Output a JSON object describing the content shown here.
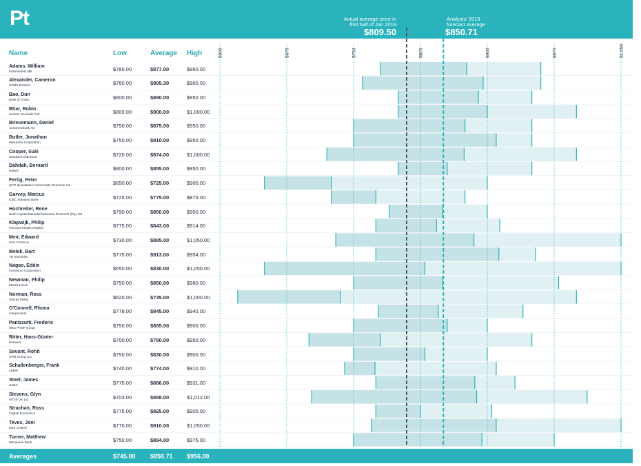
{
  "header": {
    "symbol": "Pt",
    "actual_note": {
      "line1": "Actual average price in",
      "line2": "first half of Jan 2019",
      "value_label": "$809.50"
    },
    "forecast_note": {
      "line1": "Analysts' 2019",
      "line2": "forecast average",
      "value_label": "$850.71"
    }
  },
  "columns": {
    "name": "Name",
    "low": "Low",
    "average": "Average",
    "high": "High"
  },
  "footer": {
    "label": "Averages",
    "low": "$745.00",
    "average": "$850.71",
    "high": "$956.00"
  },
  "colors": {
    "accent": "#2ab3bc",
    "bar_dark": "#c5e3e6",
    "bar_light": "#e1f1f3",
    "avg_line": "#2ab3bc",
    "actual_line": "#555555"
  },
  "chart_data": {
    "type": "range-bar",
    "axis": {
      "min": 600,
      "max": 1050,
      "ticks": [
        600,
        675,
        750,
        825,
        900,
        975,
        1050
      ],
      "tick_labels": [
        "$600",
        "$675",
        "$750",
        "$825",
        "$900",
        "$975",
        "$1,050"
      ]
    },
    "reference_lines": [
      {
        "label": "Actual average price in first half of Jan 2019",
        "value": 809.5
      },
      {
        "label": "Analysts' 2019 forecast average",
        "value": 850.71
      }
    ],
    "rows": [
      {
        "name": "Adams, William",
        "org": "Fastmarkets MB",
        "low": 780,
        "avg": 877,
        "high": 960,
        "low_label": "$780.00",
        "avg_label": "$877.00",
        "high_label": "$960.00"
      },
      {
        "name": "Alexander, Cameron",
        "org": "GFMS Refinitiv",
        "low": 760,
        "avg": 895.3,
        "high": 960,
        "low_label": "$760.00",
        "avg_label": "$895.30",
        "high_label": "$960.00"
      },
      {
        "name": "Bao, Dun",
        "org": "Bank of China",
        "low": 800,
        "avg": 890,
        "high": 950,
        "low_label": "$800.00",
        "avg_label": "$890.00",
        "high_label": "$950.00"
      },
      {
        "name": "Bhar, Robin",
        "org": "Societe Generale CIB",
        "low": 800,
        "avg": 900,
        "high": 1000,
        "low_label": "$800.00",
        "avg_label": "$900.00",
        "high_label": "$1,000.00"
      },
      {
        "name": "Briesemann, Daniel",
        "org": "Commerzbank AG",
        "low": 750,
        "avg": 875,
        "high": 950,
        "low_label": "$750.00",
        "avg_label": "$875.00",
        "high_label": "$950.00"
      },
      {
        "name": "Butler, Jonathan",
        "org": "Mitsubishi Corporation",
        "low": 750,
        "avg": 910,
        "high": 950,
        "low_label": "$750.00",
        "avg_label": "$910.00",
        "high_label": "$950.00"
      },
      {
        "name": "Cooper, Suki",
        "org": "Standard Chartered",
        "low": 720,
        "avg": 874,
        "high": 1000,
        "low_label": "$720.00",
        "avg_label": "$874.00",
        "high_label": "$1,000.00"
      },
      {
        "name": "Dahdah, Bernard",
        "org": "Natixis",
        "low": 800,
        "avg": 855,
        "high": 950,
        "low_label": "$800.00",
        "avg_label": "$855.00",
        "high_label": "$950.00"
      },
      {
        "name": "Fertig, Peter",
        "org": "QCR Quantitative Commodity Research Ltd",
        "low": 650,
        "avg": 725,
        "high": 900,
        "low_label": "$650.00",
        "avg_label": "$725.00",
        "high_label": "$900.00"
      },
      {
        "name": "Garvey, Marcus",
        "org": "ICBC Standard Bank",
        "low": 725,
        "avg": 775,
        "high": 875,
        "low_label": "$725.00",
        "avg_label": "$775.00",
        "high_label": "$875.00"
      },
      {
        "name": "Hochreiter, Rene",
        "org": "Noah Capital Markets/Sieberana Research (Pty) Ltd",
        "low": 790,
        "avg": 850,
        "high": 900,
        "low_label": "$790.00",
        "avg_label": "$850.00",
        "high_label": "$900.00"
      },
      {
        "name": "Klapwijk, Philip",
        "org": "Precious Metals Insights",
        "low": 775,
        "avg": 843,
        "high": 914,
        "low_label": "$775.00",
        "avg_label": "$843.00",
        "high_label": "$914.00"
      },
      {
        "name": "Meir, Edward",
        "org": "INTL FCStone",
        "low": 730,
        "avg": 885,
        "high": 1050,
        "low_label": "$730.00",
        "avg_label": "$885.00",
        "high_label": "$1,050.00"
      },
      {
        "name": "Melek, Bart",
        "org": "TD Securities",
        "low": 775,
        "avg": 913,
        "high": 954,
        "low_label": "$775.00",
        "avg_label": "$913.00",
        "high_label": "$954.00"
      },
      {
        "name": "Nagao, Eddie",
        "org": "Sumitomo Corporation",
        "low": 650,
        "avg": 830,
        "high": 1050,
        "low_label": "$650.00",
        "avg_label": "$830.00",
        "high_label": "$1,050.00"
      },
      {
        "name": "Newman, Philip",
        "org": "Metals Focus",
        "low": 750,
        "avg": 850,
        "high": 980,
        "low_label": "$750.00",
        "avg_label": "$850.00",
        "high_label": "$980.00"
      },
      {
        "name": "Norman, Ross",
        "org": "Sharps Pixley",
        "low": 620,
        "avg": 735,
        "high": 1000,
        "low_label": "$620.00",
        "avg_label": "$735.00",
        "high_label": "$1,000.00"
      },
      {
        "name": "O'Connell, Rhona",
        "org": "Independent",
        "low": 778,
        "avg": 845,
        "high": 940,
        "low_label": "$778.00",
        "avg_label": "$845.00",
        "high_label": "$940.00"
      },
      {
        "name": "Panizzutti, Frederic",
        "org": "MKS PAMP Group",
        "low": 750,
        "avg": 855,
        "high": 900,
        "low_label": "$750.00",
        "avg_label": "$855.00",
        "high_label": "$900.00"
      },
      {
        "name": "Ritter, Hans-Günter",
        "org": "Heraeus",
        "low": 700,
        "avg": 780,
        "high": 950,
        "low_label": "$700.00",
        "avg_label": "$780.00",
        "high_label": "$950.00"
      },
      {
        "name": "Savant, Rohit",
        "org": "CPM Group LLC",
        "low": 750,
        "avg": 830,
        "high": 900,
        "low_label": "$750.00",
        "avg_label": "$830.00",
        "high_label": "$900.00"
      },
      {
        "name": "Schallenberger, Frank",
        "org": "LBBW",
        "low": 740,
        "avg": 774,
        "high": 910,
        "low_label": "$740.00",
        "avg_label": "$774.00",
        "high_label": "$910.00"
      },
      {
        "name": "Steel, James",
        "org": "HSBC",
        "low": 775,
        "avg": 886,
        "high": 931,
        "low_label": "$775.00",
        "avg_label": "$886.00",
        "high_label": "$931.00"
      },
      {
        "name": "Stevens, Glyn",
        "org": "MTSS UK Ltd",
        "low": 703,
        "avg": 888,
        "high": 1012,
        "low_label": "$703.00",
        "avg_label": "$888.00",
        "high_label": "$1,012.00"
      },
      {
        "name": "Strachan, Ross",
        "org": "Capital Economics",
        "low": 775,
        "avg": 825,
        "high": 905,
        "low_label": "$775.00",
        "avg_label": "$825.00",
        "high_label": "$905.00"
      },
      {
        "name": "Teves, Joni",
        "org": "UBS Limited",
        "low": 770,
        "avg": 910,
        "high": 1050,
        "low_label": "$770.00",
        "avg_label": "$910.00",
        "high_label": "$1,050.00"
      },
      {
        "name": "Turner, Matthew",
        "org": "Macquarie Bank",
        "low": 750,
        "avg": 894,
        "high": 975,
        "low_label": "$750.00",
        "avg_label": "$894.00",
        "high_label": "$975.00"
      }
    ]
  }
}
